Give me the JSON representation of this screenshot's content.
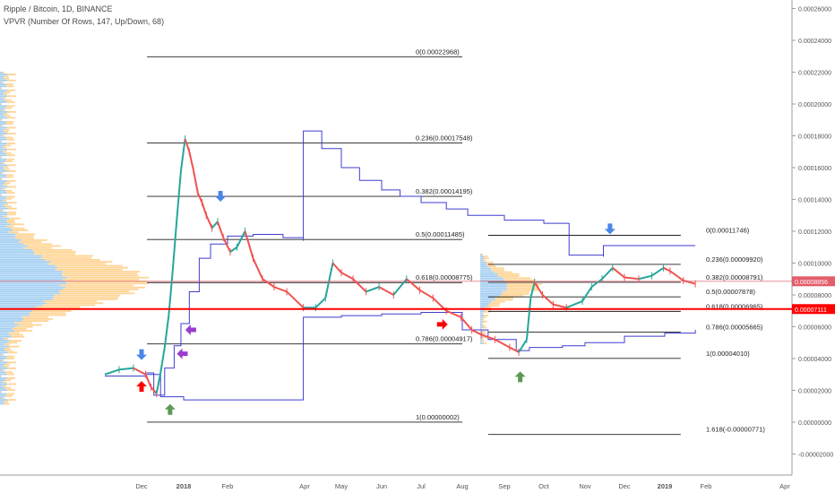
{
  "header": {
    "title": "Ripple / Bitcoin, 1D, BINANCE",
    "indicator": "VPVR (Number Of Rows, 147, Up/Down, 68)"
  },
  "colors": {
    "background": "#ffffff",
    "up_candle": "#26a69a",
    "down_candle": "#ef5350",
    "fib_line": "#1f1f1f",
    "blue_line": "#3f3fd1",
    "current_price_line": "#ff0000",
    "marker_line": "#e35d6a",
    "vp_up": "#5aa8e8",
    "vp_down": "#ffb74d"
  },
  "chart_data": {
    "type": "candlestick",
    "title": "Ripple / Bitcoin, 1D, BINANCE",
    "xlabel": "",
    "ylabel": "",
    "ylim": [
      -2e-05,
      0.00026
    ],
    "y_ticks": [
      "0.00026000",
      "0.00024000",
      "0.00022000",
      "0.00020000",
      "0.00018000",
      "0.00016000",
      "0.00014000",
      "0.00012000",
      "0.00010000",
      "0.00008000",
      "0.00006000",
      "0.00004000",
      "0.00002000",
      "0.00000000",
      "-0.00002000"
    ],
    "x_ticks": [
      "Dec",
      "2018",
      "Feb",
      "Apr",
      "May",
      "Jun",
      "Jul",
      "Aug",
      "Sep",
      "Oct",
      "Nov",
      "Dec",
      "2019",
      "Feb",
      "Apr"
    ],
    "price_labels": [
      {
        "label": "0.00008856",
        "value": 8.856e-05,
        "color": "#e35d6a"
      },
      {
        "label": "0.00007111",
        "value": 7.111e-05,
        "color": "#ff0000"
      }
    ],
    "fib_sets": [
      {
        "x_start": "2017-12-05",
        "x_end": "2018-08-01",
        "levels": [
          {
            "label": "0(0.00022968)",
            "value": 0.00022968
          },
          {
            "label": "0.236(0.00017548)",
            "value": 0.00017548
          },
          {
            "label": "0.382(0.00014195)",
            "value": 0.00014195
          },
          {
            "label": "0.5(0.00011485)",
            "value": 0.00011485
          },
          {
            "label": "0.618(0.00008775)",
            "value": 8.775e-05
          },
          {
            "label": "0.786(0.00004917)",
            "value": 4.917e-05
          },
          {
            "label": "1(0.00000002)",
            "value": 2e-08
          }
        ]
      },
      {
        "x_start": "2018-08-20",
        "x_end": "2019-01-13",
        "levels": [
          {
            "label": "0(0.00011746)",
            "value": 0.00011746
          },
          {
            "label": "0.236(0.00009920)",
            "value": 9.92e-05
          },
          {
            "label": "0.382(0.00008791)",
            "value": 8.791e-05
          },
          {
            "label": "0.5(0.00007878)",
            "value": 7.878e-05
          },
          {
            "label": "0.618(0.00006965)",
            "value": 6.965e-05
          },
          {
            "label": "0.786(0.00005665)",
            "value": 5.665e-05
          },
          {
            "label": "1(0.00004010)",
            "value": 4.01e-05
          },
          {
            "label": "1.618(-0.00000771)",
            "value": -7.71e-06
          }
        ]
      }
    ],
    "series": [
      {
        "type": "close_line",
        "points": [
          [
            "2017-11-13",
            3e-05
          ],
          [
            "2017-11-20",
            3.3e-05
          ],
          [
            "2017-11-27",
            3.4e-05
          ],
          [
            "2017-12-04",
            3e-05
          ],
          [
            "2017-12-08",
            2.2e-05
          ],
          [
            "2017-12-12",
            1.8e-05
          ],
          [
            "2017-12-15",
            3.1e-05
          ],
          [
            "2017-12-18",
            4.7e-05
          ],
          [
            "2017-12-21",
            6.7e-05
          ],
          [
            "2017-12-24",
            9.6e-05
          ],
          [
            "2017-12-27",
            0.000128
          ],
          [
            "2017-12-30",
            0.000158
          ],
          [
            "2018-01-02",
            0.000178
          ],
          [
            "2018-01-05",
            0.00017
          ],
          [
            "2018-01-08",
            0.000158
          ],
          [
            "2018-01-11",
            0.000144
          ],
          [
            "2018-01-14",
            0.000138
          ],
          [
            "2018-01-17",
            0.00013
          ],
          [
            "2018-01-21",
            0.000122
          ],
          [
            "2018-01-25",
            0.000126
          ],
          [
            "2018-01-29",
            0.000116
          ],
          [
            "2018-02-03",
            0.000107
          ],
          [
            "2018-02-08",
            0.00011
          ],
          [
            "2018-02-14",
            0.00012
          ],
          [
            "2018-02-20",
            0.000103
          ],
          [
            "2018-02-27",
            9e-05
          ],
          [
            "2018-03-08",
            8.5e-05
          ],
          [
            "2018-03-18",
            8.2e-05
          ],
          [
            "2018-03-31",
            7.2e-05
          ],
          [
            "2018-04-10",
            7.2e-05
          ],
          [
            "2018-04-18",
            7.8e-05
          ],
          [
            "2018-04-24",
            0.0001
          ],
          [
            "2018-05-01",
            9.4e-05
          ],
          [
            "2018-05-10",
            9e-05
          ],
          [
            "2018-05-20",
            8.2e-05
          ],
          [
            "2018-05-30",
            8.5e-05
          ],
          [
            "2018-06-10",
            8e-05
          ],
          [
            "2018-06-20",
            9e-05
          ],
          [
            "2018-06-30",
            8.3e-05
          ],
          [
            "2018-07-10",
            7.8e-05
          ],
          [
            "2018-07-20",
            7e-05
          ],
          [
            "2018-07-31",
            6.6e-05
          ],
          [
            "2018-08-08",
            5.8e-05
          ],
          [
            "2018-08-15",
            5.5e-05
          ],
          [
            "2018-08-25",
            5.2e-05
          ],
          [
            "2018-09-05",
            4.7e-05
          ],
          [
            "2018-09-12",
            4.4e-05
          ],
          [
            "2018-09-18",
            5.2e-05
          ],
          [
            "2018-09-21",
            7.8e-05
          ],
          [
            "2018-09-24",
            8.8e-05
          ],
          [
            "2018-09-30",
            8e-05
          ],
          [
            "2018-10-08",
            7.4e-05
          ],
          [
            "2018-10-18",
            7.2e-05
          ],
          [
            "2018-10-30",
            7.6e-05
          ],
          [
            "2018-11-06",
            8.5e-05
          ],
          [
            "2018-11-14",
            9e-05
          ],
          [
            "2018-11-22",
            9.7e-05
          ],
          [
            "2018-12-01",
            9.1e-05
          ],
          [
            "2018-12-12",
            9e-05
          ],
          [
            "2018-12-22",
            9.2e-05
          ],
          [
            "2018-12-31",
            9.7e-05
          ],
          [
            "2019-01-05",
            9.5e-05
          ],
          [
            "2019-01-15",
            8.9e-05
          ],
          [
            "2019-01-24",
            8.7e-05
          ]
        ]
      },
      {
        "type": "indicator_line",
        "points": [
          [
            "2017-11-13",
            2.9e-05
          ],
          [
            "2017-12-04",
            3.1e-05
          ],
          [
            "2017-12-10",
            1.7e-05
          ],
          [
            "2017-12-18",
            3.4e-05
          ],
          [
            "2017-12-25",
            4.8e-05
          ],
          [
            "2017-12-30",
            6.2e-05
          ],
          [
            "2018-01-05",
            8.2e-05
          ],
          [
            "2018-01-12",
            0.000103
          ],
          [
            "2018-01-20",
            0.000112
          ],
          [
            "2018-02-01",
            0.000117
          ],
          [
            "2018-02-20",
            0.000118
          ],
          [
            "2018-03-15",
            0.000116
          ],
          [
            "2018-03-31",
            0.000114
          ],
          [
            "2018-03-31",
            0.000183
          ],
          [
            "2018-04-15",
            0.000172
          ],
          [
            "2018-05-01",
            0.00016
          ],
          [
            "2018-05-15",
            0.000152
          ],
          [
            "2018-06-01",
            0.000146
          ],
          [
            "2018-06-15",
            0.000142
          ],
          [
            "2018-07-01",
            0.000138
          ],
          [
            "2018-07-20",
            0.000134
          ],
          [
            "2018-08-01",
            0.000134
          ],
          [
            "2018-08-05",
            0.00013
          ],
          [
            "2018-09-01",
            0.000127
          ],
          [
            "2018-10-01",
            0.000125
          ],
          [
            "2018-10-20",
            0.000122
          ],
          [
            "2018-10-20",
            0.000105
          ],
          [
            "2018-11-15",
            0.000104
          ],
          [
            "2018-11-15",
            0.000111
          ],
          [
            "2019-01-24",
            0.000111
          ]
        ]
      },
      {
        "type": "indicator_line",
        "points": [
          [
            "2017-12-04",
            3e-05
          ],
          [
            "2017-12-15",
            1.6e-05
          ],
          [
            "2018-01-01",
            1.4e-05
          ],
          [
            "2018-02-01",
            1.4e-05
          ],
          [
            "2018-03-01",
            1.4e-05
          ],
          [
            "2018-03-31",
            1.4e-05
          ],
          [
            "2018-03-31",
            6.6e-05
          ],
          [
            "2018-05-01",
            6.7e-05
          ],
          [
            "2018-06-01",
            6.8e-05
          ],
          [
            "2018-07-01",
            6.9e-05
          ],
          [
            "2018-08-01",
            5.8e-05
          ],
          [
            "2018-08-20",
            5.2e-05
          ],
          [
            "2018-09-10",
            4.5e-05
          ],
          [
            "2018-09-20",
            4.7e-05
          ],
          [
            "2018-10-15",
            4.8e-05
          ],
          [
            "2018-11-01",
            5e-05
          ],
          [
            "2018-12-01",
            5.4e-05
          ],
          [
            "2019-01-01",
            5.6e-05
          ],
          [
            "2019-01-24",
            5.8e-05
          ]
        ]
      }
    ],
    "markers": [
      {
        "kind": "arrow-up",
        "color": "#ff0000",
        "date": "2017-12-01",
        "value": 2.25e-05
      },
      {
        "kind": "arrow-down",
        "color": "#4a86e8",
        "date": "2017-12-01",
        "value": 4.25e-05
      },
      {
        "kind": "arrow-up",
        "color": "#5c9a54",
        "date": "2017-12-22",
        "value": 8e-06
      },
      {
        "kind": "arrow-down",
        "color": "#4a86e8",
        "date": "2018-01-27",
        "value": 0.000142
      },
      {
        "kind": "arrow-left",
        "color": "#9a3ccf",
        "date": "2018-01-06",
        "value": 5.8e-05
      },
      {
        "kind": "arrow-left",
        "color": "#9a3ccf",
        "date": "2017-12-31",
        "value": 4.3e-05
      },
      {
        "kind": "arrow-right",
        "color": "#ff0000",
        "date": "2018-07-17",
        "value": 6.15e-05
      },
      {
        "kind": "arrow-up",
        "color": "#5c9a54",
        "date": "2018-09-13",
        "value": 2.85e-05
      },
      {
        "kind": "arrow-down",
        "color": "#4a86e8",
        "date": "2018-11-20",
        "value": 0.0001215
      }
    ]
  }
}
